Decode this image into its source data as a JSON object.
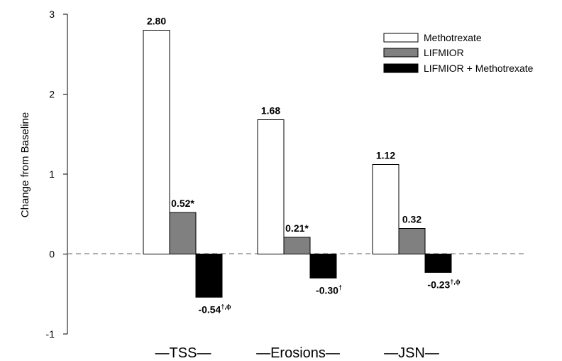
{
  "chart_data": {
    "type": "bar",
    "ylabel": "Change from Baseline",
    "ylim": [
      -1,
      3
    ],
    "yticks": [
      "3",
      "2",
      "1",
      "0",
      "-1"
    ],
    "zero_line": "dashed",
    "grid": false,
    "legend_position": "top-right",
    "categories": [
      "TSS",
      "Erosions",
      "JSN"
    ],
    "category_labels": [
      "—TSS—",
      "—Erosions—",
      "—JSN—"
    ],
    "series": [
      {
        "name": "Methotrexate",
        "color": "#ffffff",
        "values": [
          2.8,
          1.68,
          1.12
        ],
        "labels": [
          {
            "value": "2.80",
            "sup": ""
          },
          {
            "value": "1.68",
            "sup": ""
          },
          {
            "value": "1.12",
            "sup": ""
          }
        ]
      },
      {
        "name": "LIFMIOR",
        "color": "#808080",
        "values": [
          0.52,
          0.21,
          0.32
        ],
        "labels": [
          {
            "value": "0.52*",
            "sup": ""
          },
          {
            "value": "0.21*",
            "sup": ""
          },
          {
            "value": "0.32",
            "sup": ""
          }
        ]
      },
      {
        "name": "LIFMIOR + Methotrexate",
        "color": "#000000",
        "values": [
          -0.54,
          -0.3,
          -0.23
        ],
        "labels": [
          {
            "value": "-0.54",
            "sup": "†,ϕ"
          },
          {
            "value": "-0.30",
            "sup": "†"
          },
          {
            "value": "-0.23",
            "sup": "†,ϕ"
          }
        ]
      }
    ]
  }
}
